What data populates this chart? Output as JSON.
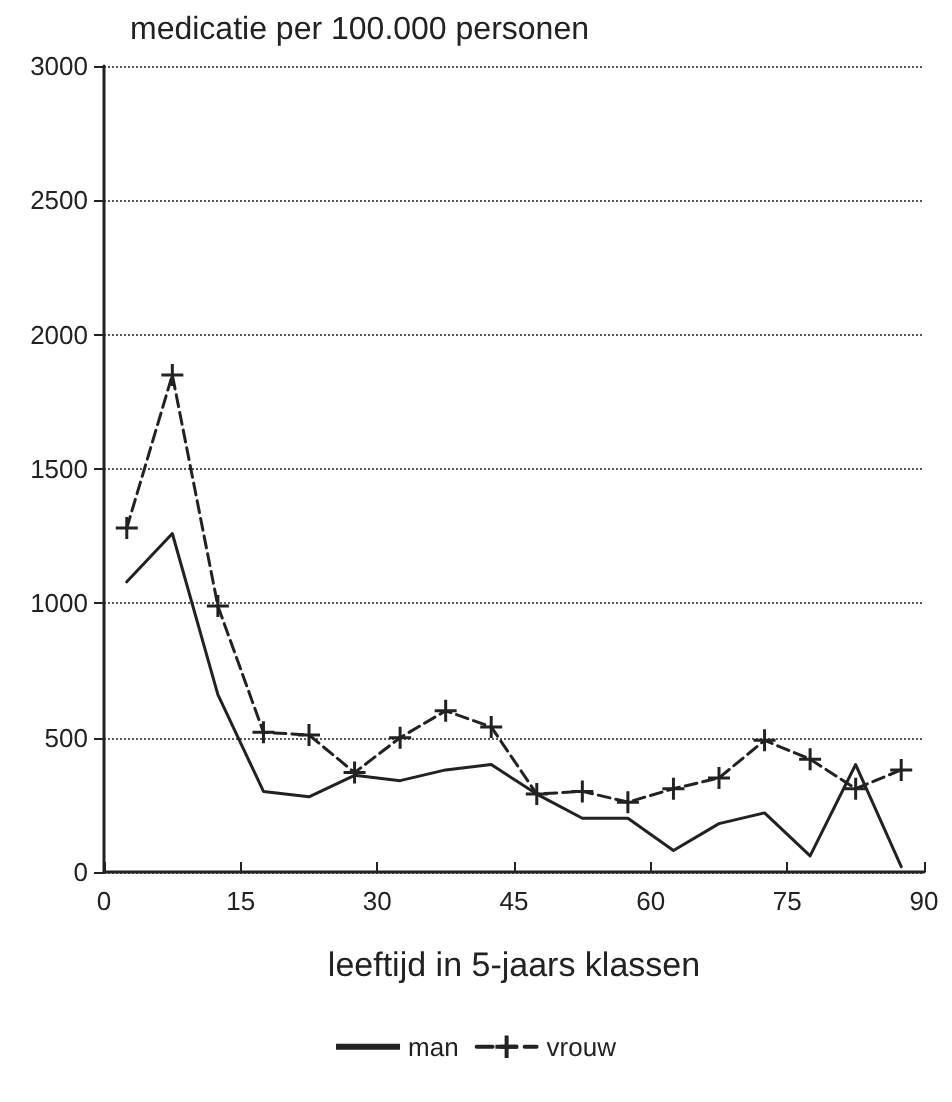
{
  "chart_data": {
    "type": "line",
    "ylabel": "medicatie per 100.000 personen",
    "xlabel": "leeftijd in 5-jaars klassen",
    "x": [
      2.5,
      7.5,
      12.5,
      17.5,
      22.5,
      27.5,
      32.5,
      37.5,
      42.5,
      47.5,
      52.5,
      57.5,
      62.5,
      67.5,
      72.5,
      77.5,
      82.5,
      87.5
    ],
    "series": [
      {
        "name": "man",
        "color": "#222222",
        "line_style": "solid",
        "marker": "none",
        "values": [
          1080,
          1260,
          660,
          300,
          280,
          360,
          340,
          380,
          400,
          290,
          200,
          200,
          80,
          180,
          220,
          60,
          400,
          20
        ]
      },
      {
        "name": "vrouw",
        "color": "#222222",
        "line_style": "dashed",
        "marker": "cross",
        "values": [
          1280,
          1850,
          990,
          520,
          510,
          370,
          500,
          600,
          540,
          290,
          300,
          260,
          310,
          350,
          490,
          420,
          310,
          380
        ]
      }
    ],
    "xlim": [
      0,
      90
    ],
    "xticks": [
      0,
      15,
      30,
      45,
      60,
      75,
      90
    ],
    "ylim": [
      0,
      3000
    ],
    "yticks": [
      0,
      500,
      1000,
      1500,
      2000,
      2500,
      3000
    ],
    "grid": "y",
    "legend": "bottom"
  }
}
